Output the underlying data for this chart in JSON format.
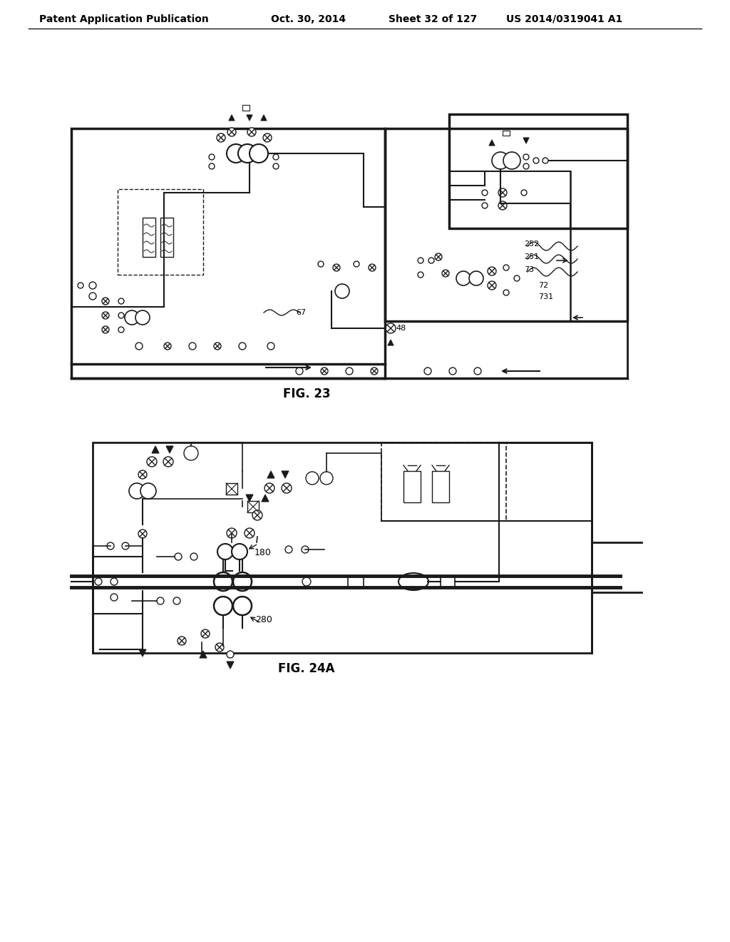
{
  "background_color": "#ffffff",
  "header_text": "Patent Application Publication",
  "header_date": "Oct. 30, 2014",
  "header_sheet": "Sheet 32 of 127",
  "header_patent": "US 2014/0319041 A1",
  "fig23_label": "FIG. 23",
  "fig24a_label": "FIG. 24A",
  "line_color": "#1a1a1a",
  "text_color": "#000000"
}
